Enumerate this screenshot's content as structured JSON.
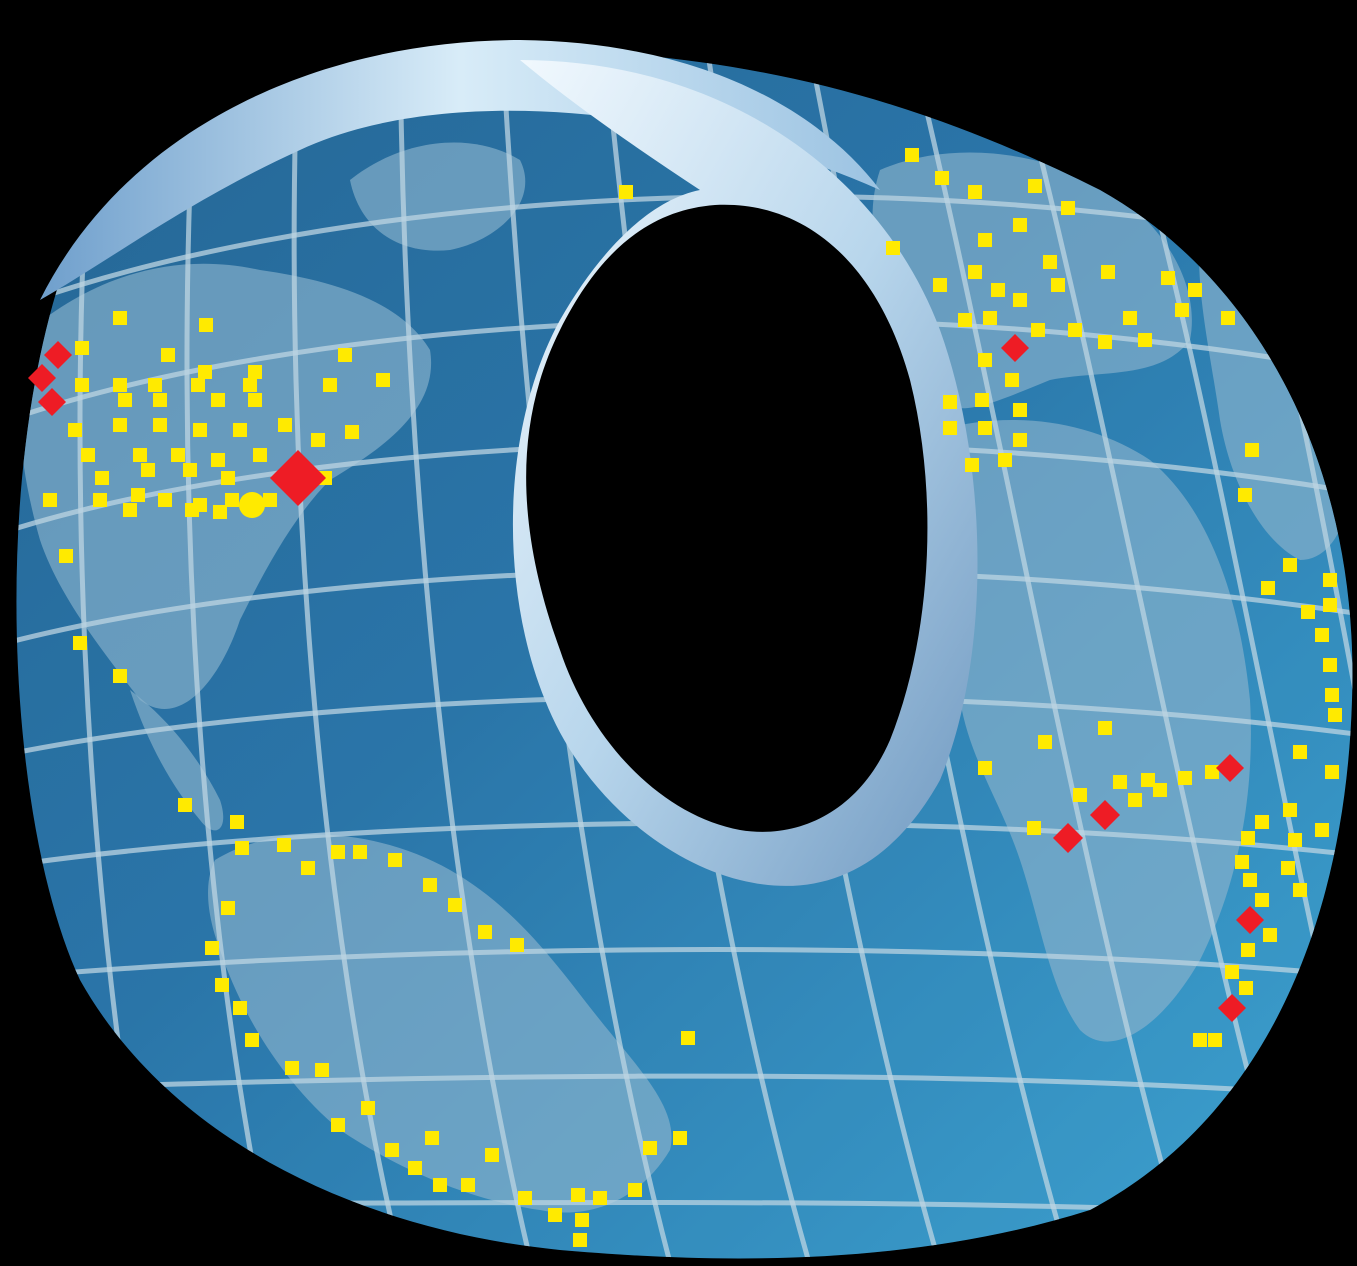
{
  "image": {
    "subject": "globe-ring",
    "colors": {
      "background": "#000000",
      "ocean_light": "#4fb6e2",
      "ocean_dark": "#1e5f8e",
      "land": "#9ec4dc",
      "grid": "#d6ecf7",
      "ring_light": "#e4f2fb",
      "ring_dark": "#7aa4c8",
      "dot_yellow": "#ffea00",
      "dot_red": "#ee1c25"
    }
  }
}
